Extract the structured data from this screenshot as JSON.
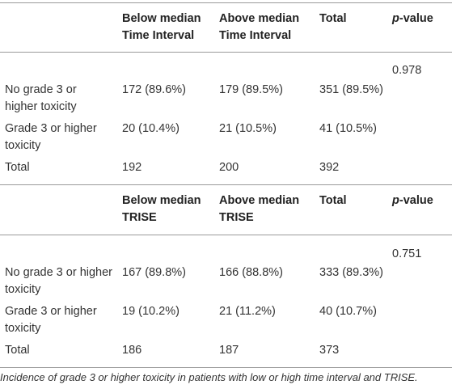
{
  "sections": [
    {
      "headers": {
        "col1": [
          "Below median",
          "Time Interval"
        ],
        "col2": [
          "Above median",
          "Time Interval"
        ],
        "col3": "Total",
        "p_prefix": "p",
        "p_suffix": "-value"
      },
      "p_value": "0.978",
      "rows": [
        {
          "label": [
            "No grade 3 or",
            "higher toxicity"
          ],
          "below": "172 (89.6%)",
          "above": "179 (89.5%)",
          "total": "351 (89.5%)"
        },
        {
          "label": [
            "Grade 3 or higher",
            "toxicity"
          ],
          "below": "20 (10.4%)",
          "above": "21 (10.5%)",
          "total": "41 (10.5%)"
        },
        {
          "label": [
            "Total"
          ],
          "below": "192",
          "above": "200",
          "total": "392"
        }
      ]
    },
    {
      "headers": {
        "col1": [
          "Below median",
          "TRISE"
        ],
        "col2": [
          "Above median",
          "TRISE"
        ],
        "col3": "Total",
        "p_prefix": "p",
        "p_suffix": "-value"
      },
      "p_value": "0.751",
      "rows": [
        {
          "label": [
            "No grade 3 or higher",
            "toxicity"
          ],
          "below": "167 (89.8%)",
          "above": "166 (88.8%)",
          "total": "333 (89.3%)"
        },
        {
          "label": [
            "Grade 3 or higher",
            "toxicity"
          ],
          "below": "19 (10.2%)",
          "above": "21 (11.2%)",
          "total": "40 (10.7%)"
        },
        {
          "label": [
            "Total"
          ],
          "below": "186",
          "above": "187",
          "total": "373"
        }
      ]
    }
  ],
  "caption": "Incidence of grade 3 or higher toxicity in patients with low or high time interval and TRISE."
}
